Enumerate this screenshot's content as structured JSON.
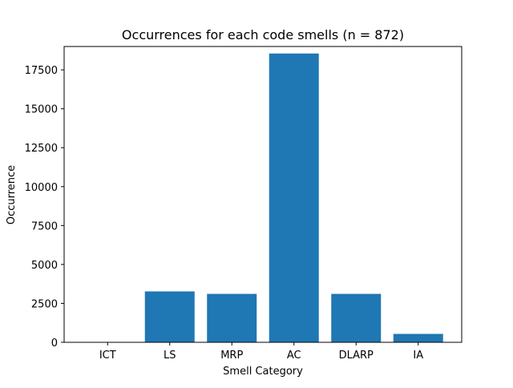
{
  "chart_data": {
    "type": "bar",
    "title": "Occurrences for each code smells (n = 872)",
    "xlabel": "Smell Category",
    "ylabel": "Occurrence",
    "categories": [
      "ICT",
      "LS",
      "MRP",
      "AC",
      "DLARP",
      "IA"
    ],
    "values": [
      0,
      3270,
      3110,
      18550,
      3110,
      540
    ],
    "ylim": [
      0,
      19000
    ],
    "yticks": [
      0,
      2500,
      5000,
      7500,
      10000,
      12500,
      15000,
      17500
    ],
    "ytick_labels": [
      "0",
      "2500",
      "5000",
      "7500",
      "10000",
      "12500",
      "15000",
      "17500"
    ],
    "bar_color": "#1f77b4",
    "grid": false,
    "legend": "none"
  }
}
